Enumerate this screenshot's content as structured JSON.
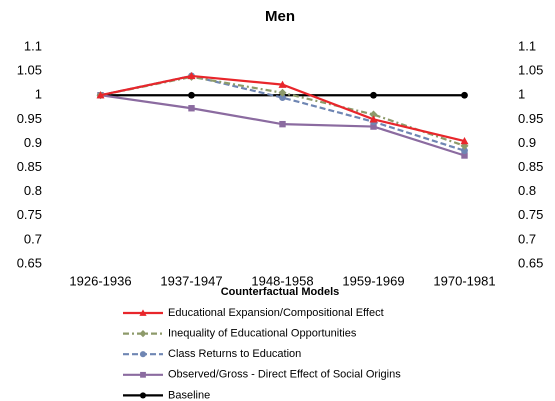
{
  "chart_data": {
    "type": "line",
    "title": "Men",
    "categories": [
      "1926-1936",
      "1937-1947",
      "1948-1958",
      "1959-1969",
      "1970-1981"
    ],
    "ylim": [
      0.65,
      1.1
    ],
    "yticks": [
      0.65,
      0.7,
      0.75,
      0.8,
      0.85,
      0.9,
      0.95,
      1,
      1.05,
      1.1
    ],
    "y2lim": [
      0.65,
      1.1
    ],
    "y2ticks": [
      0.65,
      0.7,
      0.75,
      0.8,
      0.85,
      0.9,
      0.95,
      1,
      1.05,
      1.1
    ],
    "legend_title": "Counterfactual Models",
    "legend_position": "bottom",
    "series": [
      {
        "name": "Educational Expansion/Compositional Effect",
        "color": "#e8262b",
        "marker": "triangle",
        "dash": "solid",
        "values": [
          1,
          1.04,
          1.022,
          0.95,
          0.905
        ]
      },
      {
        "name": "Inequality of Educational Opportunities",
        "color": "#8d9a6a",
        "marker": "diamond",
        "dash": "dashdot",
        "values": [
          1,
          1.038,
          1.005,
          0.96,
          0.895
        ]
      },
      {
        "name": "Class Returns to Education",
        "color": "#6f86b3",
        "marker": "circle",
        "dash": "dashed",
        "values": [
          1,
          1.04,
          0.995,
          0.945,
          0.885
        ]
      },
      {
        "name": "Observed/Gross - Direct Effect of Social Origins",
        "color": "#8b6ba0",
        "marker": "square",
        "dash": "solid",
        "values": [
          1,
          0.973,
          0.94,
          0.935,
          0.875
        ]
      },
      {
        "name": "Baseline",
        "color": "#000000",
        "marker": "circle",
        "dash": "solid",
        "values": [
          1,
          1,
          1,
          1,
          1
        ]
      }
    ]
  }
}
